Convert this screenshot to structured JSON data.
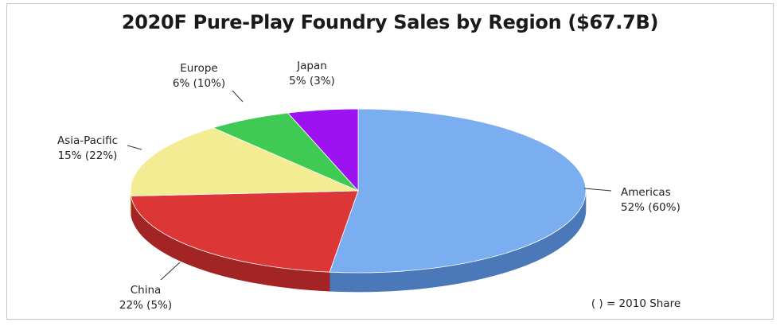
{
  "chart_data": {
    "type": "pie",
    "title": "2020F Pure-Play Foundry Sales by Region ($67.7B)",
    "series": [
      {
        "name": "Americas",
        "pct_label": "52% (60%)",
        "value": 52,
        "value_2010": 60,
        "color": "#7aaef0",
        "side": "#4a78b8"
      },
      {
        "name": "China",
        "pct_label": "22% (5%)",
        "value": 22,
        "value_2010": 5,
        "color": "#dd3636",
        "side": "#a32424"
      },
      {
        "name": "Asia-Pacific",
        "pct_label": "15% (22%)",
        "value": 15,
        "value_2010": 22,
        "color": "#f3ec93",
        "side": "#b9b15c"
      },
      {
        "name": "Europe",
        "pct_label": "6% (10%)",
        "value": 6,
        "value_2010": 10,
        "color": "#3fca53",
        "side": "#2a8f38"
      },
      {
        "name": "Japan",
        "pct_label": "5% (3%)",
        "value": 5,
        "value_2010": 3,
        "color": "#9d12f0",
        "side": "#6a0aa6"
      }
    ],
    "note": "( ) = 2010 Share",
    "legend": "none"
  }
}
